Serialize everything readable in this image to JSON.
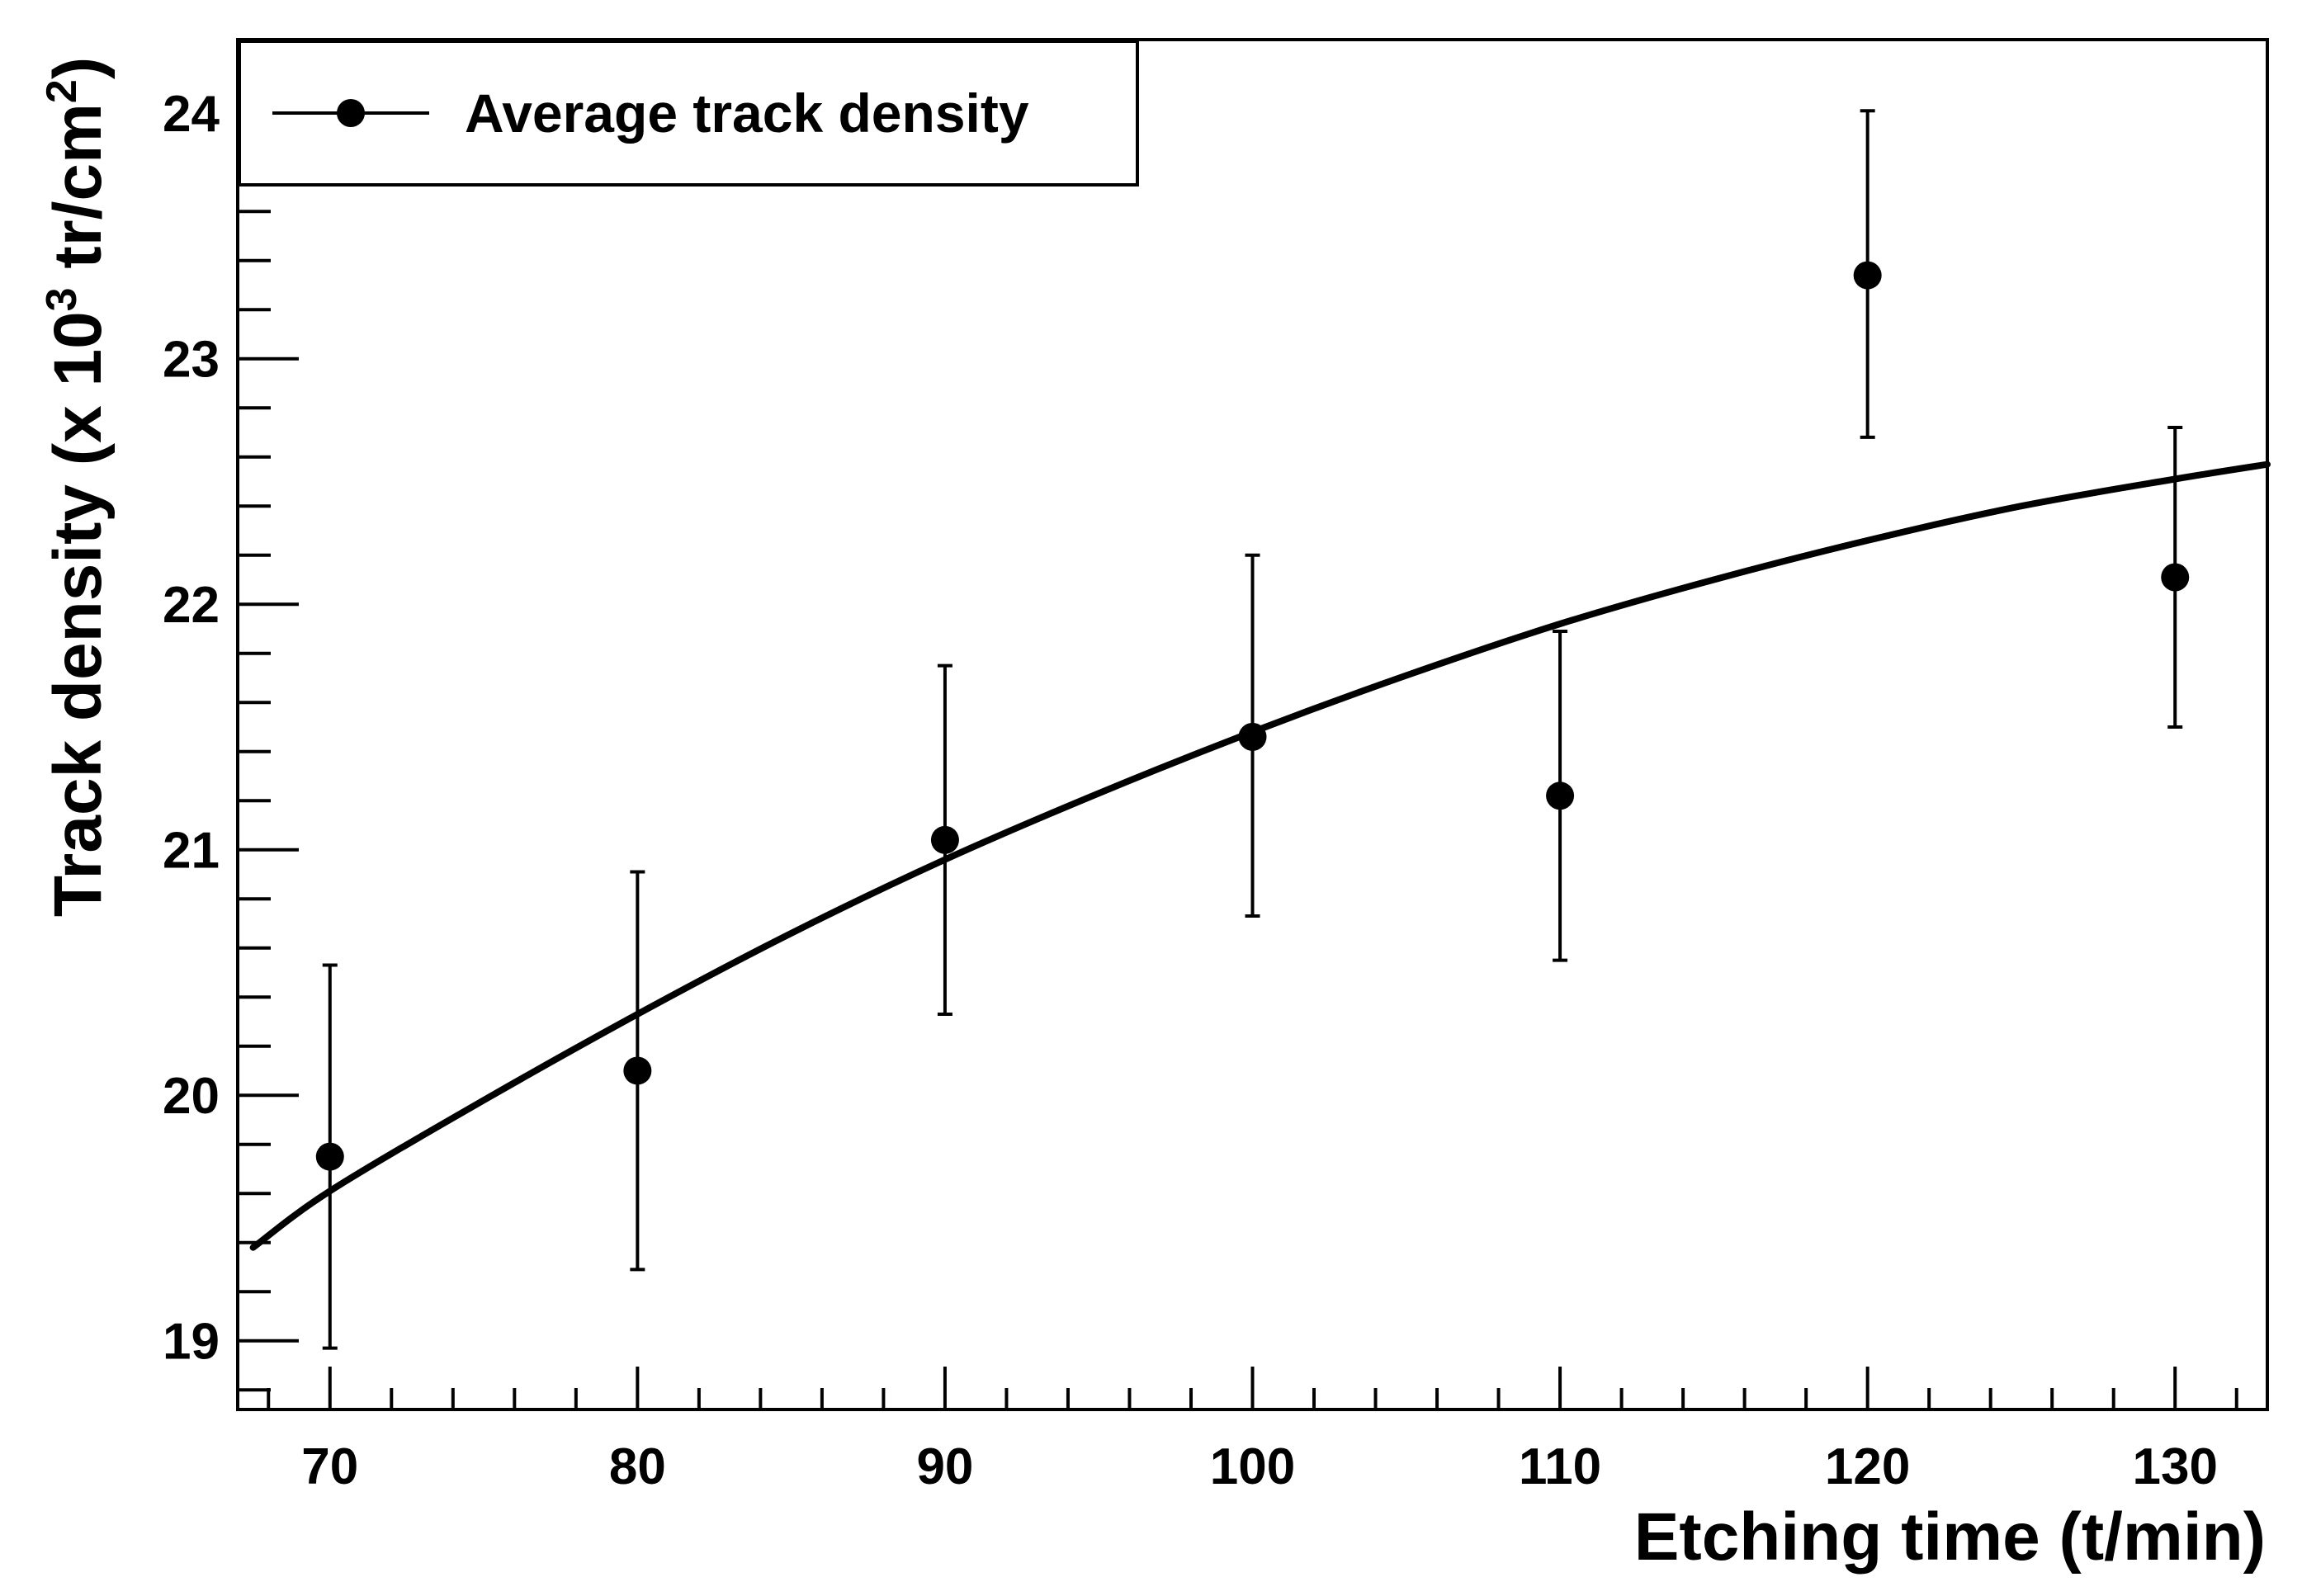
{
  "chart_data": {
    "type": "scatter",
    "title": "",
    "xlabel": "Etching time (t/min)",
    "ylabel": {
      "prefix": "Track density (x 10",
      "exp": "3",
      "mid": " tr/cm",
      "exp2": "2",
      "suffix": ")"
    },
    "xlim": [
      67,
      133
    ],
    "ylim": [
      18.72,
      24.3
    ],
    "x_ticks": [
      "70",
      "80",
      "90",
      "100",
      "110",
      "120",
      "130"
    ],
    "y_ticks": [
      "19",
      "20",
      "21",
      "22",
      "23",
      "24"
    ],
    "legend": {
      "label": "Average track density",
      "position": "top-left"
    },
    "series": [
      {
        "name": "Average track density",
        "x": [
          70,
          80,
          90,
          100,
          110,
          120,
          130
        ],
        "y": [
          19.75,
          20.1,
          21.04,
          21.46,
          21.22,
          23.34,
          22.11
        ],
        "err_low": [
          0.78,
          0.81,
          0.71,
          0.73,
          0.67,
          0.66,
          0.61
        ],
        "err_high": [
          0.78,
          0.81,
          0.71,
          0.74,
          0.67,
          0.67,
          0.61
        ]
      }
    ],
    "fit": {
      "name": "fit",
      "x": [
        67.5,
        70,
        75,
        80,
        85,
        90,
        95,
        100,
        105,
        110,
        115,
        120,
        125,
        130,
        133
      ],
      "y": [
        19.38,
        19.61,
        19.98,
        20.33,
        20.66,
        20.96,
        21.23,
        21.48,
        21.71,
        21.92,
        22.1,
        22.26,
        22.4,
        22.51,
        22.57
      ]
    }
  }
}
